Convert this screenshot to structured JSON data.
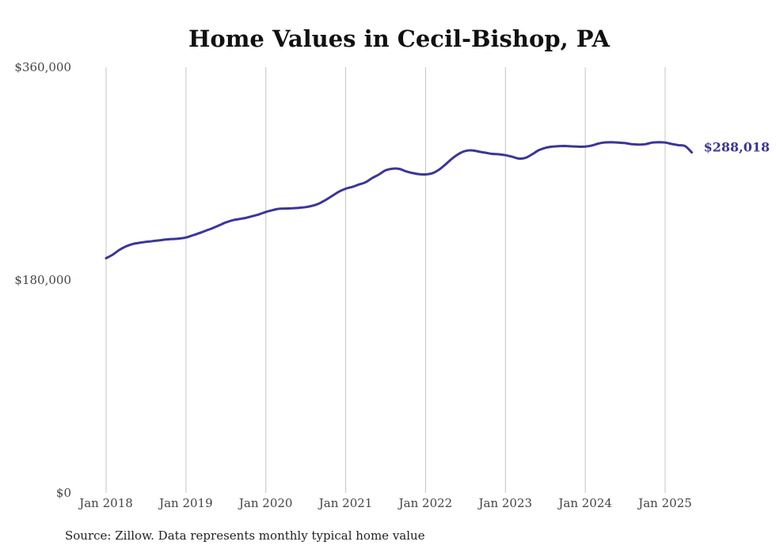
{
  "chart_data": {
    "type": "line",
    "title": "Home Values in Cecil-Bishop, PA",
    "xlabel": "",
    "ylabel": "",
    "ylim": [
      0,
      360000
    ],
    "xlim": [
      "2018-01",
      "2025-05"
    ],
    "y_ticks": [
      {
        "value": 0,
        "label": "$0"
      },
      {
        "value": 180000,
        "label": "$180,000"
      },
      {
        "value": 360000,
        "label": "$360,000"
      }
    ],
    "x_ticks": [
      {
        "value": "2018-01",
        "label": "Jan 2018"
      },
      {
        "value": "2019-01",
        "label": "Jan 2019"
      },
      {
        "value": "2020-01",
        "label": "Jan 2020"
      },
      {
        "value": "2021-01",
        "label": "Jan 2021"
      },
      {
        "value": "2022-01",
        "label": "Jan 2022"
      },
      {
        "value": "2023-01",
        "label": "Jan 2023"
      },
      {
        "value": "2024-01",
        "label": "Jan 2024"
      },
      {
        "value": "2025-01",
        "label": "Jan 2025"
      }
    ],
    "grid": {
      "vertical": true,
      "horizontal": false
    },
    "line_color": "#3b3698",
    "series": [
      {
        "x": [
          "2018-01",
          "2018-02",
          "2018-03",
          "2018-04",
          "2018-05",
          "2018-06",
          "2018-07",
          "2018-08",
          "2018-09",
          "2018-10",
          "2018-11",
          "2018-12",
          "2019-01",
          "2019-02",
          "2019-03",
          "2019-04",
          "2019-05",
          "2019-06",
          "2019-07",
          "2019-08",
          "2019-09",
          "2019-10",
          "2019-11",
          "2019-12",
          "2020-01",
          "2020-02",
          "2020-03",
          "2020-04",
          "2020-05",
          "2020-06",
          "2020-07",
          "2020-08",
          "2020-09",
          "2020-10",
          "2020-11",
          "2020-12",
          "2021-01",
          "2021-02",
          "2021-03",
          "2021-04",
          "2021-05",
          "2021-06",
          "2021-07",
          "2021-08",
          "2021-09",
          "2021-10",
          "2021-11",
          "2021-12",
          "2022-01",
          "2022-02",
          "2022-03",
          "2022-04",
          "2022-05",
          "2022-06",
          "2022-07",
          "2022-08",
          "2022-09",
          "2022-10",
          "2022-11",
          "2022-12",
          "2023-01",
          "2023-02",
          "2023-03",
          "2023-04",
          "2023-05",
          "2023-06",
          "2023-07",
          "2023-08",
          "2023-09",
          "2023-10",
          "2023-11",
          "2023-12",
          "2024-01",
          "2024-02",
          "2024-03",
          "2024-04",
          "2024-05",
          "2024-06",
          "2024-07",
          "2024-08",
          "2024-09",
          "2024-10",
          "2024-11",
          "2024-12",
          "2025-01",
          "2025-02",
          "2025-03",
          "2025-04",
          "2025-05"
        ],
        "values": [
          198500,
          201500,
          205500,
          208500,
          210500,
          211500,
          212300,
          212900,
          213600,
          214300,
          214700,
          215100,
          216000,
          217800,
          219700,
          221800,
          223900,
          226300,
          228800,
          230600,
          231600,
          232600,
          234100,
          235600,
          237600,
          239100,
          240300,
          240500,
          240700,
          241100,
          241700,
          242800,
          244800,
          247800,
          251300,
          254800,
          257300,
          258800,
          260800,
          262800,
          266300,
          269300,
          272800,
          274200,
          274100,
          272100,
          270600,
          269600,
          269300,
          270300,
          273300,
          277800,
          282800,
          286800,
          289200,
          289700,
          288700,
          287700,
          286700,
          286400,
          285600,
          284300,
          282800,
          283300,
          286300,
          289800,
          291800,
          292800,
          293300,
          293400,
          293100,
          292800,
          292900,
          293800,
          295500,
          296400,
          296600,
          296300,
          295800,
          294900,
          294600,
          294900,
          296200,
          296600,
          296300,
          295100,
          294100,
          293300,
          288018
        ]
      }
    ],
    "end_label": "$288,018"
  },
  "footer": {
    "source": "Source: Zillow. Data represents monthly typical home value"
  }
}
